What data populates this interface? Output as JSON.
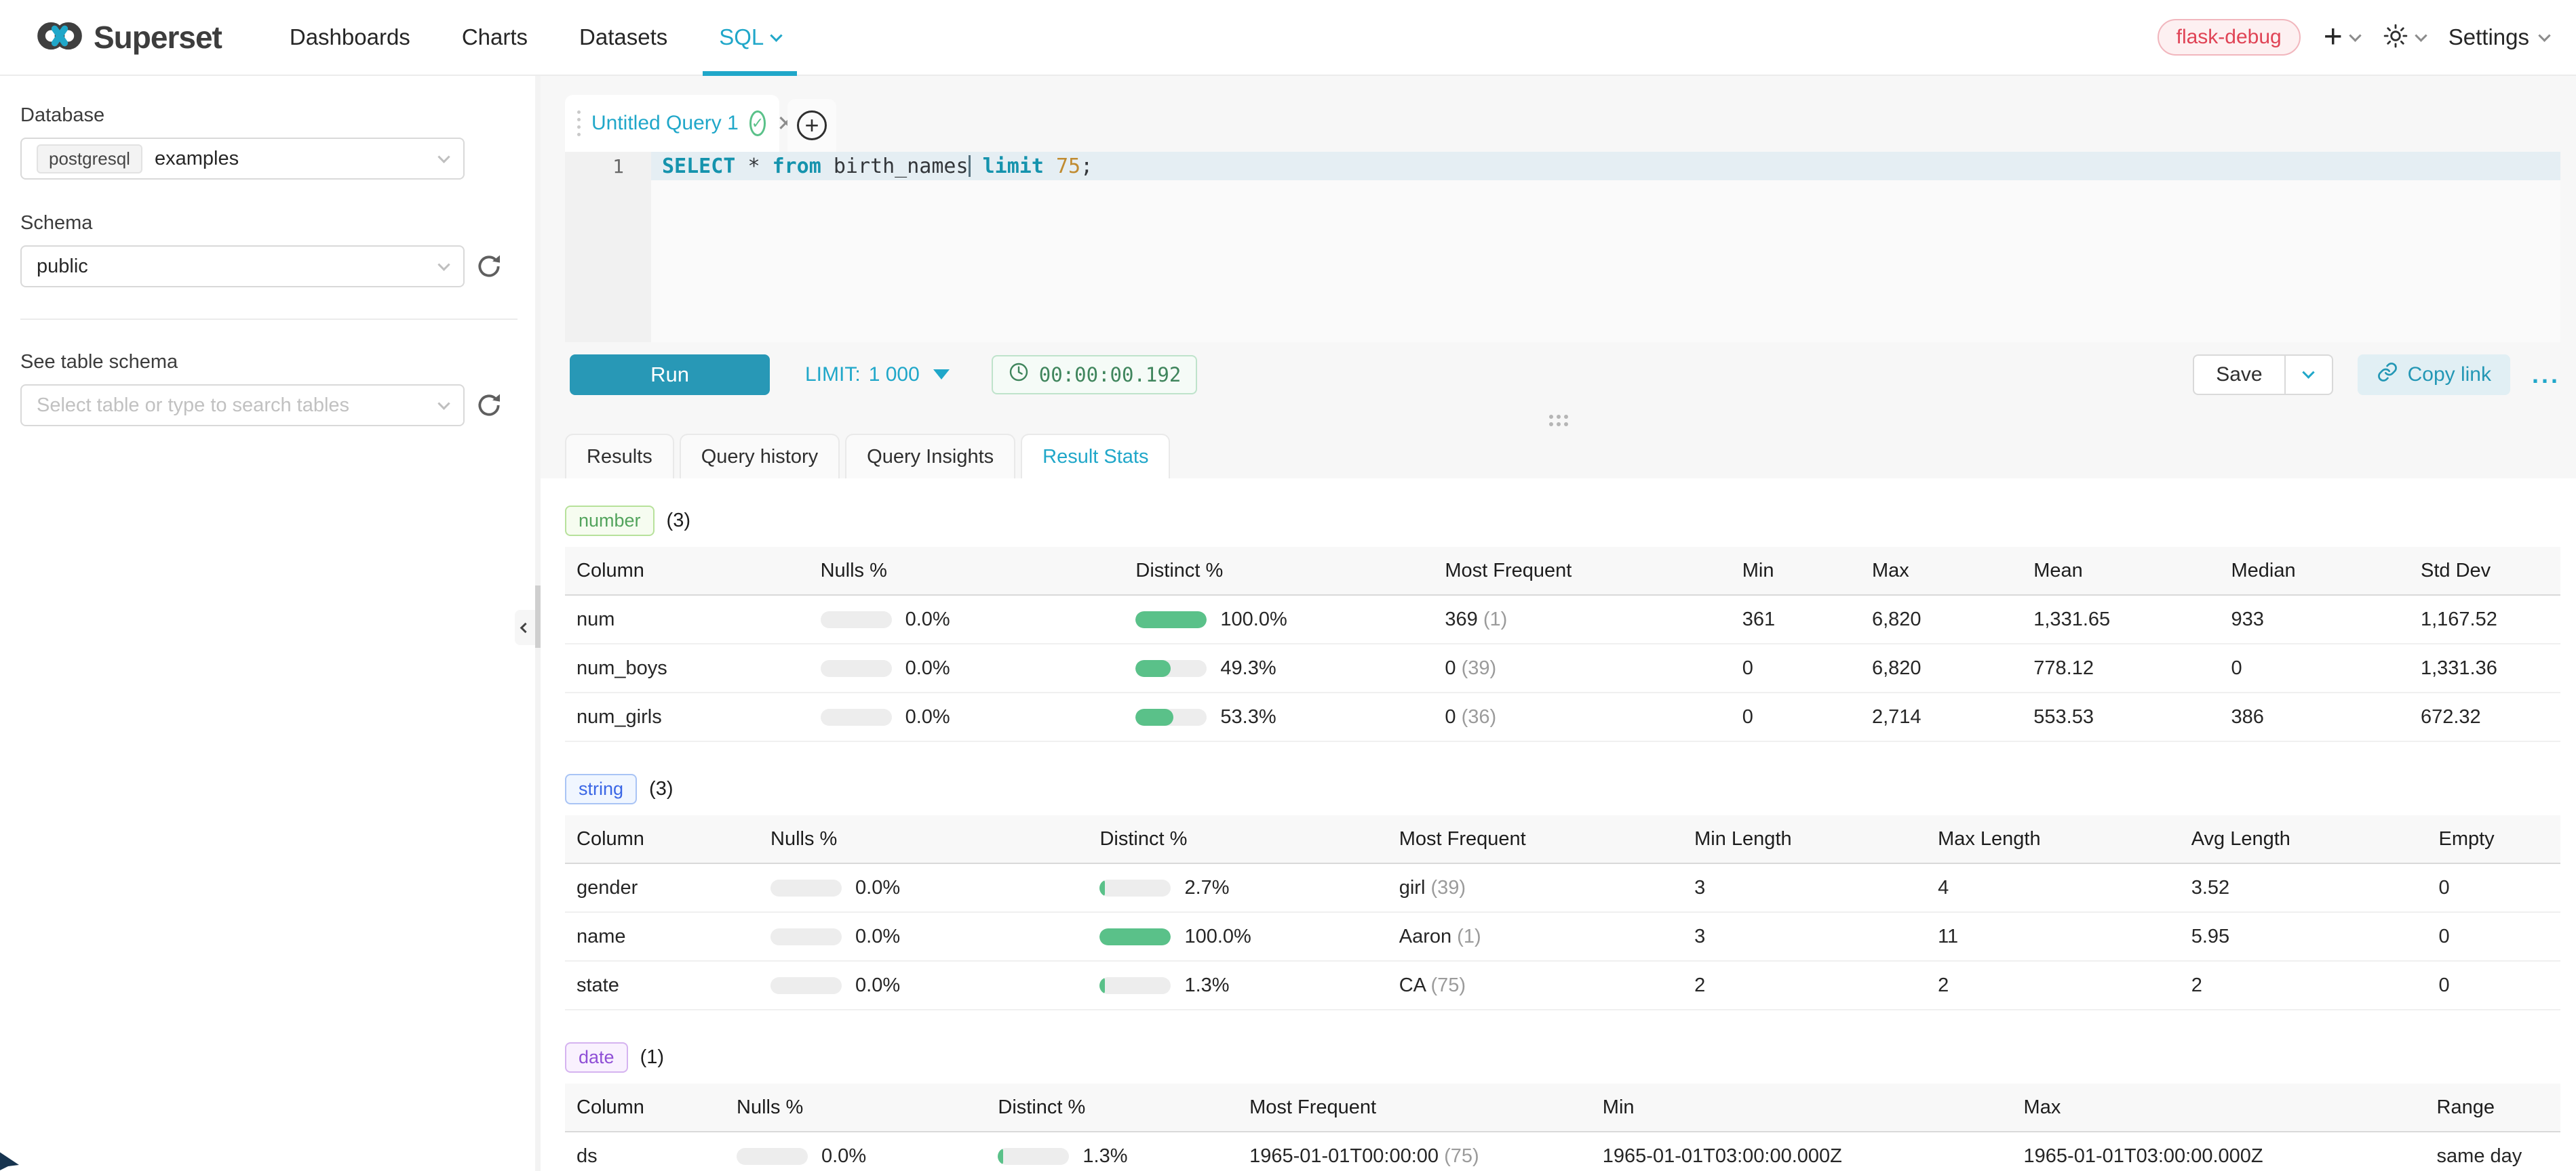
{
  "navbar": {
    "brand": "Superset",
    "items": [
      {
        "label": "Dashboards",
        "active": false
      },
      {
        "label": "Charts",
        "active": false
      },
      {
        "label": "Datasets",
        "active": false
      },
      {
        "label": "SQL",
        "active": true,
        "caret": true
      }
    ],
    "env_badge": "flask-debug",
    "settings_label": "Settings",
    "colors": {
      "accent": "#20a7c9",
      "env_text": "#e04355"
    }
  },
  "sidebar": {
    "database_label": "Database",
    "database_tag": "postgresql",
    "database_value": "examples",
    "schema_label": "Schema",
    "schema_value": "public",
    "table_label": "See table schema",
    "table_placeholder": "Select table or type to search tables"
  },
  "editor": {
    "tab_title": "Untitled Query 1",
    "line_number": "1",
    "sql": "SELECT * from birth_names limit 75;",
    "tokens": [
      {
        "text": "SELECT",
        "type": "kw"
      },
      {
        "text": " ",
        "type": "plain"
      },
      {
        "text": "*",
        "type": "plain"
      },
      {
        "text": " ",
        "type": "plain"
      },
      {
        "text": "from",
        "type": "kw"
      },
      {
        "text": " birth_names",
        "type": "plain",
        "cursor_after": true
      },
      {
        "text": " ",
        "type": "plain"
      },
      {
        "text": "limit",
        "type": "kw"
      },
      {
        "text": " ",
        "type": "plain"
      },
      {
        "text": "75",
        "type": "num"
      },
      {
        "text": ";",
        "type": "plain"
      }
    ]
  },
  "toolbar": {
    "run_label": "Run",
    "limit_label": "LIMIT:",
    "limit_value": "1 000",
    "timer": "00:00:00.192",
    "save_label": "Save",
    "copy_link_label": "Copy link",
    "more_label": "..."
  },
  "result_tabs": [
    {
      "label": "Results",
      "active": false
    },
    {
      "label": "Query history",
      "active": false
    },
    {
      "label": "Query Insights",
      "active": false
    },
    {
      "label": "Result Stats",
      "active": true
    }
  ],
  "sections": [
    {
      "id": "number",
      "badge": "number",
      "count": "(3)",
      "colors": {
        "text": "#52a35c",
        "bg": "#f6fcf0",
        "border": "#b7e19b"
      },
      "columns": [
        "Column",
        "Nulls %",
        "Distinct %",
        "Most Frequent",
        "Min",
        "Max",
        "Mean",
        "Median",
        "Std Dev"
      ],
      "rows": [
        {
          "name": "num",
          "nulls": {
            "pct": "0.0%",
            "fill": 0
          },
          "distinct": {
            "pct": "100.0%",
            "fill": 100
          },
          "mf": {
            "value": "369",
            "count": "(1)"
          },
          "values": [
            "361",
            "6,820",
            "1,331.65",
            "933",
            "1,167.52"
          ]
        },
        {
          "name": "num_boys",
          "nulls": {
            "pct": "0.0%",
            "fill": 0
          },
          "distinct": {
            "pct": "49.3%",
            "fill": 49.3
          },
          "mf": {
            "value": "0",
            "count": "(39)"
          },
          "values": [
            "0",
            "6,820",
            "778.12",
            "0",
            "1,331.36"
          ]
        },
        {
          "name": "num_girls",
          "nulls": {
            "pct": "0.0%",
            "fill": 0
          },
          "distinct": {
            "pct": "53.3%",
            "fill": 53.3
          },
          "mf": {
            "value": "0",
            "count": "(36)"
          },
          "values": [
            "0",
            "2,714",
            "553.53",
            "386",
            "672.32"
          ]
        }
      ]
    },
    {
      "id": "string",
      "badge": "string",
      "count": "(3)",
      "colors": {
        "text": "#3a66e5",
        "bg": "#f0f6ff",
        "border": "#a9c4f5"
      },
      "columns": [
        "Column",
        "Nulls %",
        "Distinct %",
        "Most Frequent",
        "Min Length",
        "Max Length",
        "Avg Length",
        "Empty"
      ],
      "rows": [
        {
          "name": "gender",
          "nulls": {
            "pct": "0.0%",
            "fill": 0
          },
          "distinct": {
            "pct": "2.7%",
            "fill": 2.7
          },
          "mf": {
            "value": "girl",
            "count": "(39)"
          },
          "values": [
            "3",
            "4",
            "3.52",
            "0"
          ]
        },
        {
          "name": "name",
          "nulls": {
            "pct": "0.0%",
            "fill": 0
          },
          "distinct": {
            "pct": "100.0%",
            "fill": 100
          },
          "mf": {
            "value": "Aaron",
            "count": "(1)"
          },
          "values": [
            "3",
            "11",
            "5.95",
            "0"
          ]
        },
        {
          "name": "state",
          "nulls": {
            "pct": "0.0%",
            "fill": 0
          },
          "distinct": {
            "pct": "1.3%",
            "fill": 1.3
          },
          "mf": {
            "value": "CA",
            "count": "(75)"
          },
          "values": [
            "2",
            "2",
            "2",
            "0"
          ]
        }
      ]
    },
    {
      "id": "date",
      "badge": "date",
      "count": "(1)",
      "colors": {
        "text": "#8f4fd6",
        "bg": "#f9f1fe",
        "border": "#d5b3f0"
      },
      "columns": [
        "Column",
        "Nulls %",
        "Distinct %",
        "Most Frequent",
        "Min",
        "Max",
        "Range"
      ],
      "rows": [
        {
          "name": "ds",
          "nulls": {
            "pct": "0.0%",
            "fill": 0
          },
          "distinct": {
            "pct": "1.3%",
            "fill": 1.3
          },
          "mf": {
            "value": "1965-01-01T00:00:00",
            "count": "(75)"
          },
          "values": [
            "1965-01-01T03:00:00.000Z",
            "1965-01-01T03:00:00.000Z",
            "same day"
          ]
        }
      ]
    }
  ]
}
